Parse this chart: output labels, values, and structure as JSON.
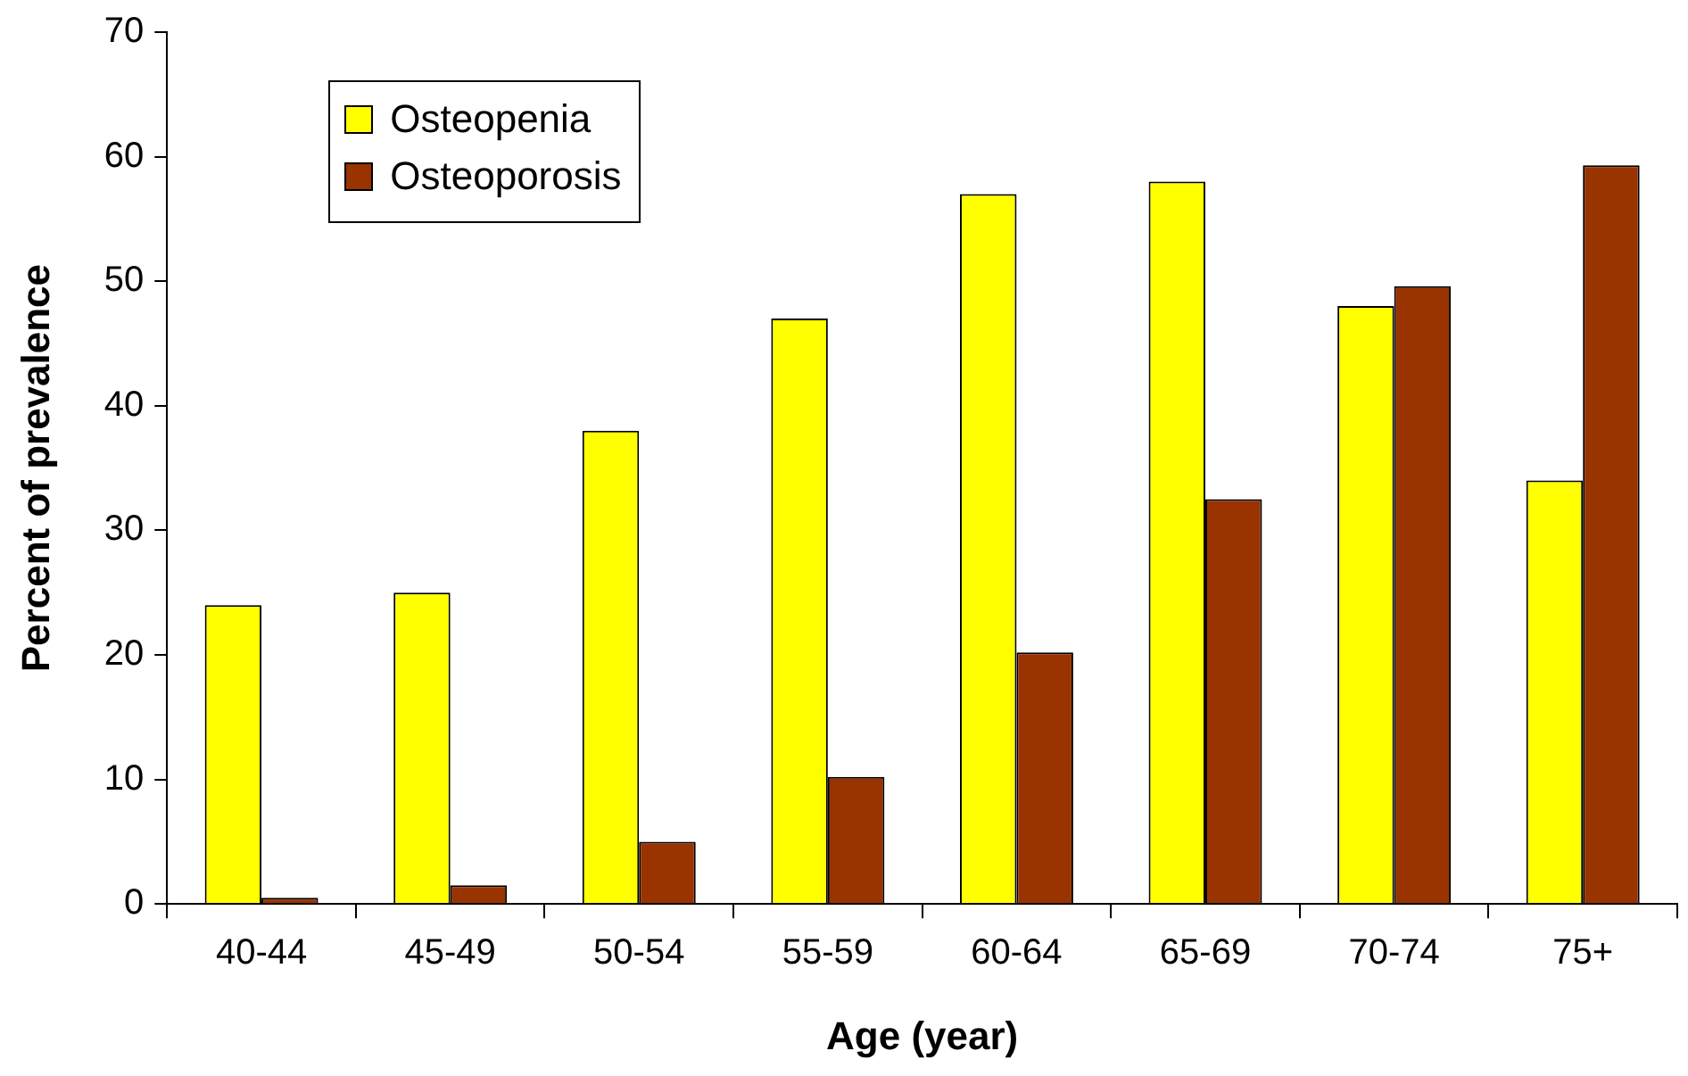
{
  "chart_data": {
    "type": "bar",
    "xlabel": "Age (year)",
    "ylabel": "Percent of prevalence",
    "categories": [
      "40-44",
      "45-49",
      "50-54",
      "55-59",
      "60-64",
      "65-69",
      "70-74",
      "75+"
    ],
    "series": [
      {
        "name": "Osteopenia",
        "color": "#ffff00",
        "values": [
          24,
          25,
          38,
          47,
          57,
          58,
          48,
          34
        ]
      },
      {
        "name": "Osteoporosis",
        "color": "#993300",
        "values": [
          0.5,
          1.5,
          5,
          10.2,
          20.2,
          32.5,
          49.6,
          59.3
        ]
      }
    ],
    "ylim": [
      0,
      70
    ],
    "yticks": [
      0,
      10,
      20,
      30,
      40,
      50,
      60,
      70
    ],
    "grid": false,
    "legend": "top left"
  }
}
